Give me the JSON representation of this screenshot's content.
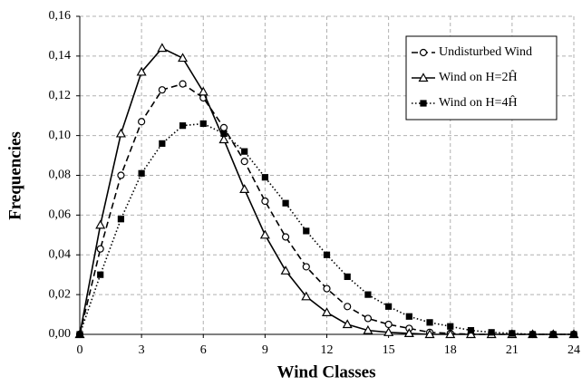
{
  "chart_data": {
    "type": "line",
    "xlabel": "Wind Classes",
    "ylabel": "Frequencies",
    "x": [
      0,
      1,
      2,
      3,
      4,
      5,
      6,
      7,
      8,
      9,
      10,
      11,
      12,
      13,
      14,
      15,
      16,
      17,
      18,
      19,
      20,
      21,
      22,
      23,
      24
    ],
    "series": [
      {
        "name": "Undisturbed Wind",
        "color": "#000000",
        "dash": "dashed",
        "marker": "circle",
        "values": [
          0,
          0.043,
          0.08,
          0.107,
          0.123,
          0.126,
          0.119,
          0.104,
          0.087,
          0.067,
          0.049,
          0.034,
          0.023,
          0.014,
          0.008,
          0.005,
          0.003,
          0.001,
          0.0005,
          0,
          0,
          0,
          0,
          0,
          0
        ]
      },
      {
        "name": "Wind on H=2Ĥ",
        "color": "#000000",
        "dash": "solid",
        "marker": "triangle",
        "values": [
          0,
          0.055,
          0.101,
          0.132,
          0.144,
          0.139,
          0.122,
          0.098,
          0.073,
          0.05,
          0.032,
          0.019,
          0.011,
          0.005,
          0.002,
          0.001,
          0.0005,
          0,
          0,
          0,
          0,
          0,
          0,
          0,
          0
        ]
      },
      {
        "name": "Wind on H=4Ĥ",
        "color": "#000000",
        "dash": "dotted",
        "marker": "square",
        "values": [
          0,
          0.03,
          0.058,
          0.081,
          0.096,
          0.105,
          0.106,
          0.101,
          0.092,
          0.079,
          0.066,
          0.052,
          0.04,
          0.029,
          0.02,
          0.014,
          0.009,
          0.006,
          0.004,
          0.002,
          0.001,
          0.0005,
          0,
          0,
          0
        ]
      }
    ],
    "xlim": [
      0,
      24
    ],
    "xticks": [
      0,
      3,
      6,
      9,
      12,
      15,
      18,
      21,
      24
    ],
    "ylim": [
      0,
      0.16
    ],
    "yticks": [
      {
        "value": 0,
        "label": "0,00"
      },
      {
        "value": 0.02,
        "label": "0,02"
      },
      {
        "value": 0.04,
        "label": "0,04"
      },
      {
        "value": 0.06,
        "label": "0,06"
      },
      {
        "value": 0.08,
        "label": "0,08"
      },
      {
        "value": 0.1,
        "label": "0,10"
      },
      {
        "value": 0.12,
        "label": "0,12"
      },
      {
        "value": 0.14,
        "label": "0,14"
      },
      {
        "value": 0.16,
        "label": "0,16"
      }
    ],
    "grid": true,
    "legend": "upper right"
  }
}
